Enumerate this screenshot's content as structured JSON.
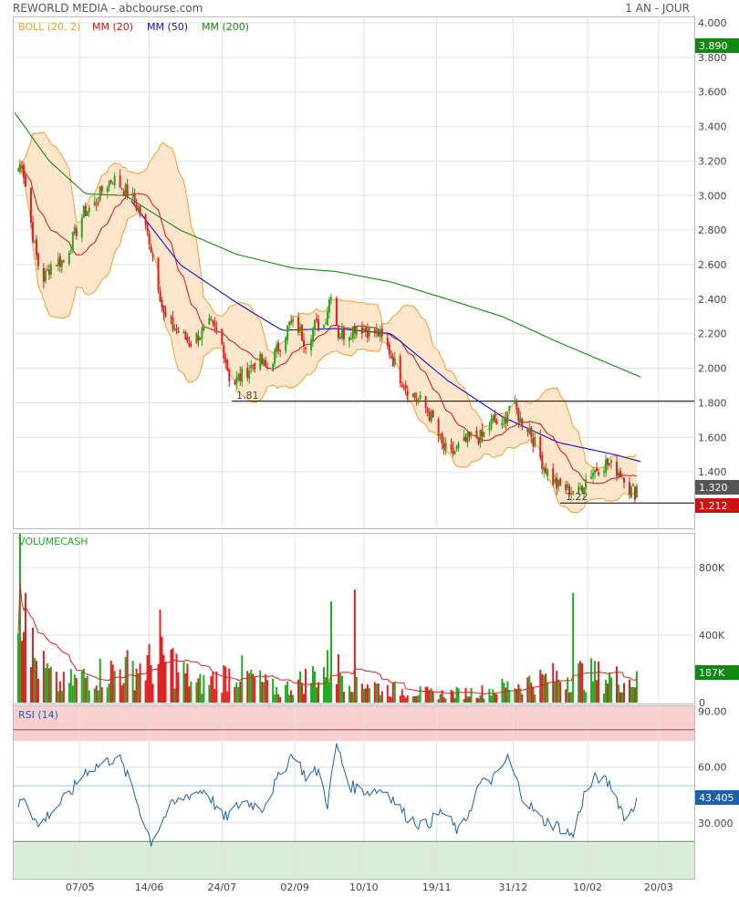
{
  "header": {
    "title": "REWORLD MEDIA - abcbourse.com",
    "period": "1 AN - JOUR"
  },
  "price_panel": {
    "legend": [
      {
        "label": "BOLL (20, 2)",
        "color": "#f0a030"
      },
      {
        "label": "MM (20)",
        "color": "#dd1111"
      },
      {
        "label": "MM (50)",
        "color": "#1111cc"
      },
      {
        "label": "MM (200)",
        "color": "#118811"
      }
    ],
    "y_ticks": [
      "4.000",
      "3.800",
      "3.600",
      "3.400",
      "3.200",
      "3.000",
      "2.800",
      "2.600",
      "2.400",
      "2.200",
      "2.000",
      "1.800",
      "1.600",
      "1.400"
    ],
    "badges": [
      {
        "text": "3.890",
        "value": 3.89,
        "color": "#118811"
      },
      {
        "text": "1.320",
        "value": 1.32,
        "color": "#555555"
      },
      {
        "text": "1.212",
        "value": 1.212,
        "color": "#cc1111"
      }
    ],
    "annotations": [
      {
        "text": "1.81",
        "value": 1.81
      },
      {
        "text": "1.22",
        "value": 1.22
      }
    ]
  },
  "volume_panel": {
    "title": "VOLUMECASH",
    "y_ticks": [
      "800K",
      "400K",
      "0"
    ],
    "badge": {
      "text": "187K",
      "color": "#118811"
    }
  },
  "rsi_panel": {
    "title": "RSI (14)",
    "y_ticks": [
      "90.00",
      "60.00",
      "30.000"
    ],
    "badge": {
      "text": "43.405",
      "color": "#1a5fb4"
    }
  },
  "x_ticks": [
    "07/05",
    "14/06",
    "24/07",
    "02/09",
    "10/10",
    "19/11",
    "31/12",
    "10/02",
    "20/03"
  ],
  "colors": {
    "up": "#22aa22",
    "down": "#dd2222",
    "boll_fill": "#fde6cc",
    "boll_line": "#f0a030",
    "ma20": "#dd1111",
    "ma50": "#1111cc",
    "ma200": "#118811",
    "rsi": "#1a5fb4",
    "overbought": "#f8d0d0",
    "oversold": "#d8ecd8"
  },
  "chart_data": {
    "type": "candlestick",
    "price_axis": {
      "min": 1.2,
      "max": 4.0
    },
    "horizontal_levels": [
      1.81,
      1.22
    ],
    "close_anchors": [
      [
        "2023-04-01",
        3.1
      ],
      [
        "2023-04-05",
        3.2
      ],
      [
        "2023-04-12",
        2.7
      ],
      [
        "2023-04-16",
        2.5
      ],
      [
        "2023-04-22",
        2.62
      ],
      [
        "2023-04-28",
        2.62
      ],
      [
        "2023-05-03",
        2.75
      ],
      [
        "2023-05-09",
        2.9
      ],
      [
        "2023-05-15",
        2.95
      ],
      [
        "2023-05-20",
        3.05
      ],
      [
        "2023-05-25",
        3.1
      ],
      [
        "2023-05-30",
        3.05
      ],
      [
        "2023-06-04",
        3.0
      ],
      [
        "2023-06-09",
        2.9
      ],
      [
        "2023-06-14",
        2.75
      ],
      [
        "2023-06-18",
        2.55
      ],
      [
        "2023-06-22",
        2.3
      ],
      [
        "2023-06-26",
        2.25
      ],
      [
        "2023-07-01",
        2.2
      ],
      [
        "2023-07-06",
        2.15
      ],
      [
        "2023-07-12",
        2.2
      ],
      [
        "2023-07-17",
        2.25
      ],
      [
        "2023-07-22",
        2.2
      ],
      [
        "2023-07-25",
        2.1
      ],
      [
        "2023-07-29",
        1.9
      ],
      [
        "2023-08-03",
        1.95
      ],
      [
        "2023-08-08",
        2.0
      ],
      [
        "2023-08-13",
        2.05
      ],
      [
        "2023-08-18",
        2.0
      ],
      [
        "2023-08-23",
        2.1
      ],
      [
        "2023-08-30",
        2.25
      ],
      [
        "2023-09-03",
        2.25
      ],
      [
        "2023-09-08",
        2.15
      ],
      [
        "2023-09-13",
        2.25
      ],
      [
        "2023-09-18",
        2.25
      ],
      [
        "2023-09-22",
        2.45
      ],
      [
        "2023-09-26",
        2.2
      ],
      [
        "2023-10-01",
        2.2
      ],
      [
        "2023-10-06",
        2.25
      ],
      [
        "2023-10-12",
        2.22
      ],
      [
        "2023-10-18",
        2.2
      ],
      [
        "2023-10-24",
        2.1
      ],
      [
        "2023-10-30",
        1.95
      ],
      [
        "2023-11-05",
        1.85
      ],
      [
        "2023-11-11",
        1.8
      ],
      [
        "2023-11-17",
        1.7
      ],
      [
        "2023-11-22",
        1.55
      ],
      [
        "2023-11-27",
        1.5
      ],
      [
        "2023-12-02",
        1.55
      ],
      [
        "2023-12-08",
        1.6
      ],
      [
        "2023-12-14",
        1.6
      ],
      [
        "2023-12-20",
        1.7
      ],
      [
        "2023-12-25",
        1.65
      ],
      [
        "2023-12-30",
        1.82
      ],
      [
        "2024-01-04",
        1.7
      ],
      [
        "2024-01-09",
        1.65
      ],
      [
        "2024-01-14",
        1.5
      ],
      [
        "2024-01-19",
        1.4
      ],
      [
        "2024-01-24",
        1.32
      ],
      [
        "2024-01-30",
        1.3
      ],
      [
        "2024-02-05",
        1.28
      ],
      [
        "2024-02-10",
        1.38
      ],
      [
        "2024-02-15",
        1.42
      ],
      [
        "2024-02-20",
        1.45
      ],
      [
        "2024-02-25",
        1.42
      ],
      [
        "2024-03-01",
        1.38
      ],
      [
        "2024-03-04",
        1.3
      ],
      [
        "2024-03-07",
        1.28
      ],
      [
        "2024-03-10",
        1.32
      ]
    ],
    "ma200_anchors": [
      [
        "2023-04-01",
        3.48
      ],
      [
        "2023-04-20",
        3.2
      ],
      [
        "2023-05-10",
        3.01
      ],
      [
        "2023-06-01",
        3.0
      ],
      [
        "2023-07-01",
        2.8
      ],
      [
        "2023-08-01",
        2.66
      ],
      [
        "2023-09-01",
        2.58
      ],
      [
        "2023-09-25",
        2.56
      ],
      [
        "2023-10-25",
        2.5
      ],
      [
        "2023-11-25",
        2.4
      ],
      [
        "2023-12-25",
        2.3
      ],
      [
        "2024-01-25",
        2.15
      ],
      [
        "2024-03-10",
        1.95
      ]
    ],
    "ma50_anchors": [
      [
        "2023-06-04",
        2.97
      ],
      [
        "2023-07-01",
        2.6
      ],
      [
        "2023-08-01",
        2.38
      ],
      [
        "2023-08-26",
        2.22
      ],
      [
        "2023-09-25",
        2.23
      ],
      [
        "2023-10-25",
        2.2
      ],
      [
        "2023-11-25",
        1.93
      ],
      [
        "2023-12-25",
        1.72
      ],
      [
        "2024-01-25",
        1.57
      ],
      [
        "2024-02-25",
        1.5
      ],
      [
        "2024-03-10",
        1.46
      ]
    ],
    "rsi_anchors": [
      [
        "2023-04-01",
        35
      ],
      [
        "2023-04-06",
        45
      ],
      [
        "2023-04-14",
        28
      ],
      [
        "2023-04-20",
        35
      ],
      [
        "2023-05-01",
        45
      ],
      [
        "2023-05-10",
        58
      ],
      [
        "2023-05-20",
        62
      ],
      [
        "2023-05-28",
        66
      ],
      [
        "2023-06-05",
        48
      ],
      [
        "2023-06-15",
        20
      ],
      [
        "2023-06-25",
        38
      ],
      [
        "2023-07-05",
        45
      ],
      [
        "2023-07-15",
        48
      ],
      [
        "2023-07-25",
        32
      ],
      [
        "2023-08-05",
        42
      ],
      [
        "2023-08-15",
        38
      ],
      [
        "2023-09-01",
        68
      ],
      [
        "2023-09-08",
        55
      ],
      [
        "2023-09-15",
        58
      ],
      [
        "2023-09-20",
        40
      ],
      [
        "2023-09-25",
        72
      ],
      [
        "2023-10-02",
        50
      ],
      [
        "2023-10-12",
        47
      ],
      [
        "2023-10-22",
        48
      ],
      [
        "2023-11-02",
        34
      ],
      [
        "2023-11-12",
        28
      ],
      [
        "2023-11-22",
        36
      ],
      [
        "2023-12-02",
        24
      ],
      [
        "2023-12-12",
        50
      ],
      [
        "2023-12-22",
        55
      ],
      [
        "2023-12-28",
        65
      ],
      [
        "2024-01-05",
        45
      ],
      [
        "2024-01-15",
        32
      ],
      [
        "2024-01-25",
        28
      ],
      [
        "2024-02-02",
        23
      ],
      [
        "2024-02-08",
        45
      ],
      [
        "2024-02-15",
        55
      ],
      [
        "2024-02-23",
        50
      ],
      [
        "2024-03-02",
        32
      ],
      [
        "2024-03-10",
        43.4
      ]
    ],
    "volume_max": 1000000,
    "volume_anchors": [
      [
        "2023-04-01",
        1000000
      ],
      [
        "2023-04-06",
        650000
      ],
      [
        "2023-04-12",
        300000
      ],
      [
        "2023-04-25",
        120000
      ],
      [
        "2023-05-15",
        200000
      ],
      [
        "2023-06-10",
        250000
      ],
      [
        "2023-06-25",
        300000
      ],
      [
        "2023-07-10",
        120000
      ],
      [
        "2023-08-01",
        220000
      ],
      [
        "2023-08-25",
        80000
      ],
      [
        "2023-09-22",
        250000
      ],
      [
        "2023-10-20",
        100000
      ],
      [
        "2023-11-20",
        60000
      ],
      [
        "2023-12-15",
        80000
      ],
      [
        "2024-01-10",
        150000
      ],
      [
        "2024-02-05",
        200000
      ],
      [
        "2024-03-10",
        150000
      ]
    ],
    "volume_spikes": [
      [
        "2023-04-04",
        1000000
      ],
      [
        "2023-04-07",
        650000
      ],
      [
        "2023-06-20",
        550000
      ],
      [
        "2023-09-23",
        600000
      ],
      [
        "2023-10-05",
        670000
      ],
      [
        "2024-02-03",
        650000
      ],
      [
        "2024-03-08",
        187000
      ]
    ],
    "last": {
      "close": 1.32,
      "volume": 187000,
      "rsi": 43.405
    }
  }
}
